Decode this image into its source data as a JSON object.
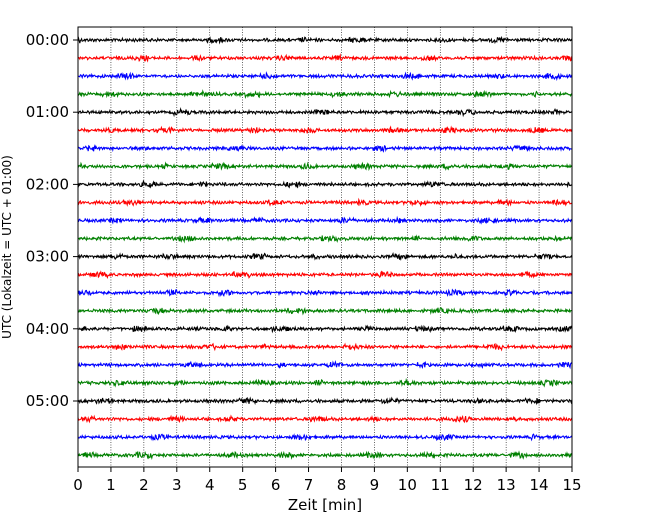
{
  "chart_data": {
    "type": "line",
    "title": "",
    "xlabel": "Zeit  [min]",
    "ylabel": "UTC (Lokalzeit = UTC + 01:00)",
    "xlim": [
      0,
      15
    ],
    "x_ticks": [
      "0",
      "1",
      "2",
      "3",
      "4",
      "5",
      "6",
      "7",
      "8",
      "9",
      "10",
      "11",
      "12",
      "13",
      "14",
      "15"
    ],
    "hour_labels": [
      "00:00",
      "01:00",
      "02:00",
      "03:00",
      "04:00",
      "05:00"
    ],
    "rows_per_hour": 4,
    "minutes_per_row": 15,
    "trace_count": 24,
    "trace_colors": [
      "#000000",
      "#ff0000",
      "#0000ff",
      "#008000"
    ],
    "grid": "vertical dotted at each minute",
    "legend": "none"
  }
}
